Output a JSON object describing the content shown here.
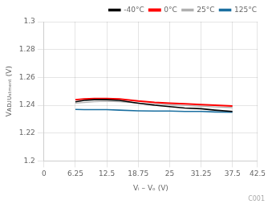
{
  "chart_data": {
    "type": "line",
    "x_label": "Vᵢ – Vₒ (V)",
    "y_label": "Vᴀᴅᴊᴜₛₜₘₑₙₜ (V)",
    "annotations": [
      "C001"
    ],
    "x": [
      6.25,
      8.0,
      10.0,
      12.5,
      15.0,
      18.75,
      22.0,
      25.0,
      28.0,
      31.25,
      34.0,
      37.5
    ],
    "series": [
      {
        "name": "-40°C",
        "color": "#000000",
        "values": [
          1.2425,
          1.2435,
          1.244,
          1.244,
          1.2435,
          1.2415,
          1.24,
          1.239,
          1.238,
          1.2375,
          1.2365,
          1.2355
        ]
      },
      {
        "name": "0°C",
        "color": "#ff0000",
        "values": [
          1.244,
          1.2445,
          1.2448,
          1.2448,
          1.2445,
          1.243,
          1.242,
          1.2415,
          1.241,
          1.2405,
          1.24,
          1.2395
        ]
      },
      {
        "name": "25°C",
        "color": "#b0b0b0",
        "values": [
          1.2415,
          1.242,
          1.2425,
          1.2428,
          1.2425,
          1.2415,
          1.2408,
          1.2403,
          1.2398,
          1.2393,
          1.2388,
          1.2383
        ]
      },
      {
        "name": "125°C",
        "color": "#1a6fa0",
        "values": [
          1.237,
          1.2368,
          1.2368,
          1.2368,
          1.2365,
          1.236,
          1.2358,
          1.2358,
          1.2356,
          1.2355,
          1.2352,
          1.235
        ]
      }
    ],
    "xlim": [
      0,
      42.5
    ],
    "ylim": [
      1.2,
      1.3
    ],
    "xticks": [
      0,
      6.25,
      12.5,
      18.75,
      25,
      31.25,
      37.5,
      42.5
    ],
    "yticks": [
      1.2,
      1.22,
      1.24,
      1.26,
      1.28,
      1.3
    ],
    "grid": true,
    "legend": "upper right"
  }
}
